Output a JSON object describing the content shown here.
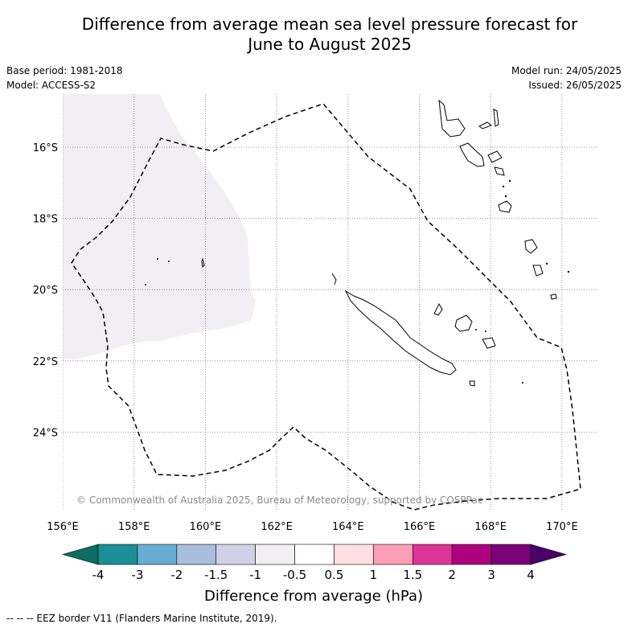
{
  "title_line1": "Difference from average mean sea level pressure forecast for",
  "title_line2": "June to August 2025",
  "base_period": "Base period: 1981-2018",
  "model": "Model: ACCESS-S2",
  "model_run": "Model run: 24/05/2025",
  "issued": "Issued: 26/05/2025",
  "copyright": "© Commonwealth of Australia 2025, Bureau of Meteorology, supported by COSPPac",
  "lon_ticks": [
    "156°E",
    "158°E",
    "160°E",
    "162°E",
    "164°E",
    "166°E",
    "168°E",
    "170°E"
  ],
  "lat_ticks": [
    "16°S",
    "18°S",
    "20°S",
    "22°S",
    "24°S"
  ],
  "colorbar": {
    "title": "Difference from average (hPa)",
    "labels": [
      "-4",
      "-3",
      "-2",
      "-1.5",
      "-1",
      "-0.5",
      "0.5",
      "1",
      "1.5",
      "2",
      "3",
      "4"
    ],
    "colors": [
      "#1c8f96",
      "#68aed3",
      "#a7bedd",
      "#d0d1e6",
      "#f1eef4",
      "#ffffff",
      "#fee0e0",
      "#fa9fb5",
      "#dd3497",
      "#ae017e",
      "#7a0177"
    ],
    "low_extend_color": "#0d6b63",
    "high_extend_color": "#49006a"
  },
  "footnote": "-- -- -- EEZ border V11 (Flanders Marine Institute, 2019).",
  "anomaly_fill_color": "#f1eef4"
}
